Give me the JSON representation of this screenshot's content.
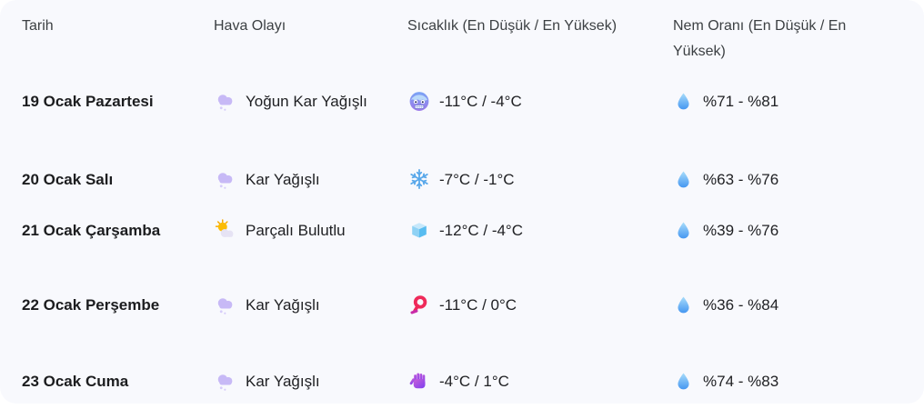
{
  "table": {
    "columns": [
      {
        "id": "tarih",
        "label": "Tarih"
      },
      {
        "id": "hava",
        "label": "Hava Olayı"
      },
      {
        "id": "sicaklik",
        "label": "Sıcaklık (En Düşük / En Yüksek)"
      },
      {
        "id": "nem",
        "label": "Nem Oranı (En Düşük / En Yüksek)"
      }
    ],
    "rows": [
      {
        "date": "19 Ocak Pazartesi",
        "weather_icon": "snow-cloud-icon",
        "weather": "Yoğun Kar Yağışlı",
        "temp_icon": "cold-face-icon",
        "temperature": "-11°C / -4°C",
        "humidity_icon": "droplet-icon",
        "humidity": "%71 - %81"
      },
      {
        "date": "20 Ocak Salı",
        "weather_icon": "snow-cloud-icon",
        "weather": "Kar Yağışlı",
        "temp_icon": "snowflake-icon",
        "temperature": "-7°C / -1°C",
        "humidity_icon": "droplet-icon",
        "humidity": "%63 - %76"
      },
      {
        "date": "21 Ocak Çarşamba",
        "weather_icon": "sun-behind-cloud-icon",
        "weather": "Parçalı Bulutlu",
        "temp_icon": "ice-cube-icon",
        "temperature": "-12°C / -4°C",
        "humidity_icon": "droplet-icon",
        "humidity": "%39 - %76"
      },
      {
        "date": "22 Ocak Perşembe",
        "weather_icon": "snow-cloud-icon",
        "weather": "Kar Yağışlı",
        "temp_icon": "scarf-icon",
        "temperature": "-11°C / 0°C",
        "humidity_icon": "droplet-icon",
        "humidity": "%36 - %84"
      },
      {
        "date": "23 Ocak Cuma",
        "weather_icon": "snow-cloud-icon",
        "weather": "Kar Yağışlı",
        "temp_icon": "gloves-icon",
        "temperature": "-4°C / 1°C",
        "humidity_icon": "droplet-icon",
        "humidity": "%74 - %83"
      }
    ]
  },
  "colors": {
    "card_background": "#f8f9fd",
    "header_text": "#3c4043",
    "date_text": "#1c1d1f",
    "body_text": "#202124",
    "snow_cloud": "#c7b9f6",
    "droplet_blue": "#4596f1",
    "scarf_red": "#ef2a5a",
    "gloves_purple": "#9a4ae0",
    "sun_yellow": "#fbbc04"
  }
}
